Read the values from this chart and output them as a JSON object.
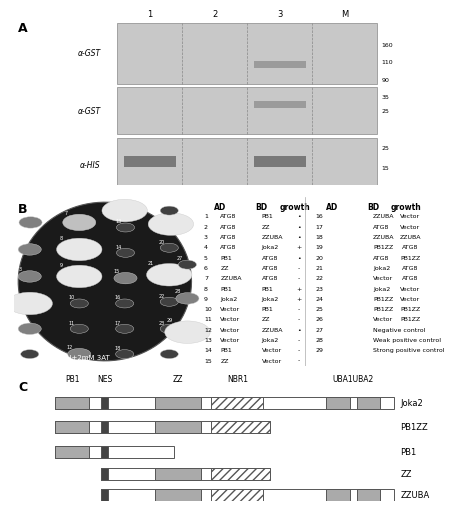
{
  "panel_A_label": "A",
  "panel_B_label": "B",
  "panel_C_label": "C",
  "gel_blot_labels": [
    "α-GST",
    "α-GST",
    "α-HIS"
  ],
  "lane_labels": [
    "1",
    "2",
    "3",
    "M"
  ],
  "marker_sizes_top": [
    "160",
    "110",
    "90"
  ],
  "marker_sizes_mid": [
    "35",
    "25"
  ],
  "marker_sizes_bot": [
    "25",
    "15"
  ],
  "table_left": [
    [
      "1",
      "ATG8",
      "PB1",
      "•"
    ],
    [
      "2",
      "ATG8",
      "ZZ",
      "•"
    ],
    [
      "3",
      "ATG8",
      "ZZUBA",
      "•"
    ],
    [
      "4",
      "ATG8",
      "Joka2",
      "+"
    ],
    [
      "5",
      "PB1",
      "ATG8",
      "•"
    ],
    [
      "6",
      "ZZ",
      "ATG8",
      "-"
    ],
    [
      "7",
      "ZZUBA",
      "ATG8",
      "-"
    ],
    [
      "8",
      "PB1",
      "PB1",
      "+"
    ],
    [
      "9",
      "Joka2",
      "Joka2",
      "+"
    ],
    [
      "10",
      "Vector",
      "PB1",
      "-"
    ],
    [
      "11",
      "Vector",
      "ZZ",
      "-"
    ],
    [
      "12",
      "Vector",
      "ZZUBA",
      "•"
    ],
    [
      "13",
      "Vector",
      "Joka2",
      "-"
    ],
    [
      "14",
      "PB1",
      "Vector",
      "-"
    ],
    [
      "15",
      "ZZ",
      "Vector",
      "-"
    ]
  ],
  "table_right": [
    [
      "16",
      "ZZUBA",
      "Vector",
      "-"
    ],
    [
      "17",
      "ATG8",
      "Vector",
      "-"
    ],
    [
      "18",
      "ZZUBA",
      "ZZUBA",
      "-"
    ],
    [
      "19",
      "PB1ZZ",
      "ATG8",
      "+"
    ],
    [
      "20",
      "ATG8",
      "PB1ZZ",
      "-"
    ],
    [
      "21",
      "Joka2",
      "ATG8",
      "+"
    ],
    [
      "22",
      "Vector",
      "ATG8",
      "-"
    ],
    [
      "23",
      "Joka2",
      "Vector",
      "-"
    ],
    [
      "24",
      "PB1ZZ",
      "Vector",
      "-"
    ],
    [
      "25",
      "PB1ZZ",
      "PB1ZZ",
      "+"
    ],
    [
      "26",
      "Vector",
      "PB1ZZ",
      "-"
    ],
    [
      "27",
      "Negative control",
      "",
      "-"
    ],
    [
      "28",
      "Weak positive control",
      "",
      "+"
    ],
    [
      "29",
      "Strong positive control",
      "",
      "+"
    ]
  ],
  "domain_labels": [
    "PB1",
    "NES",
    "ZZ",
    "NBR1",
    "UBA1UBA2"
  ],
  "protein_names": [
    "Joka2",
    "PB1ZZ",
    "PB1",
    "ZZ",
    "ZZUBA"
  ],
  "sd_lth_label": "SD-LTH+2mM 3AT",
  "bg_color": "#ffffff",
  "gel_bg": "#d8d8d8",
  "plate_bg": "#2a2a2a"
}
